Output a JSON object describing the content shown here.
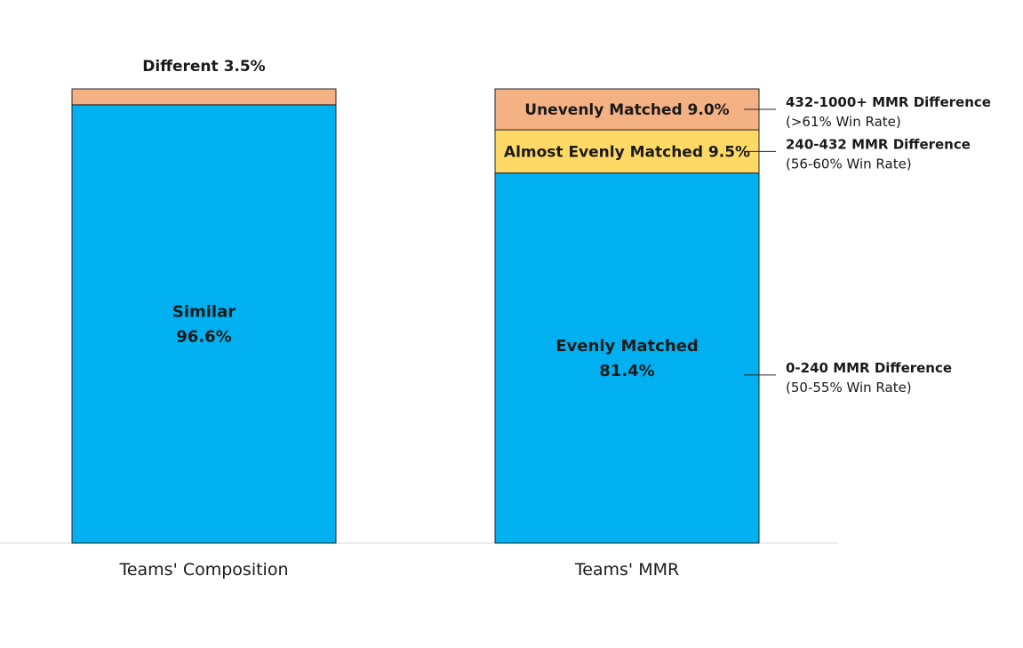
{
  "chart_data": {
    "type": "bar",
    "stacked": true,
    "normalized_percent": true,
    "categories": [
      "Teams' Composition",
      "Teams' MMR"
    ],
    "bars": [
      {
        "category": "Teams' Composition",
        "segments": [
          {
            "label_lines": [
              "Similar",
              "96.6%"
            ],
            "value": 96.6,
            "color": "#00B0F0",
            "label_position": "inside"
          },
          {
            "label_lines": [
              "Different 3.5%"
            ],
            "value": 3.5,
            "color": "#F4B183",
            "label_position": "above"
          }
        ]
      },
      {
        "category": "Teams' MMR",
        "segments": [
          {
            "label_lines": [
              "Evenly Matched",
              "81.4%"
            ],
            "value": 81.4,
            "color": "#00B0F0",
            "label_position": "inside",
            "annotation": {
              "title": "0-240 MMR Difference",
              "subtitle": "(50-55% Win Rate)"
            }
          },
          {
            "label_lines": [
              "Almost Evenly Matched 9.5%"
            ],
            "value": 9.5,
            "color": "#FFD966",
            "label_position": "inside",
            "annotation": {
              "title": "240-432 MMR Difference",
              "subtitle": "(56-60% Win Rate)"
            }
          },
          {
            "label_lines": [
              "Unevenly Matched 9.0%"
            ],
            "value": 9.0,
            "color": "#F4B183",
            "label_position": "inside",
            "annotation": {
              "title": "432-1000+ MMR Difference",
              "subtitle": "(>61% Win Rate)"
            }
          }
        ]
      }
    ],
    "ylim": [
      0,
      100
    ],
    "grid": false,
    "legend": "none"
  }
}
